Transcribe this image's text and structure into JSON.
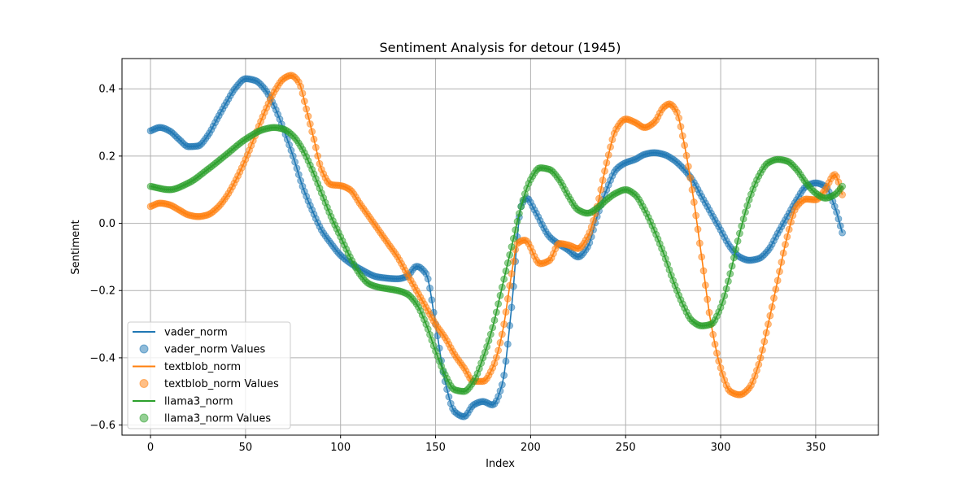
{
  "chart_data": {
    "type": "line",
    "title": "Sentiment Analysis for detour (1945)",
    "xlabel": "Index",
    "ylabel": "Sentiment",
    "xlim": [
      -15,
      383
    ],
    "ylim": [
      -0.63,
      0.49
    ],
    "xticks": [
      0,
      50,
      100,
      150,
      200,
      250,
      300,
      350
    ],
    "yticks": [
      -0.6,
      -0.4,
      -0.2,
      0.0,
      0.2,
      0.4
    ],
    "xtick_labels": [
      "0",
      "50",
      "100",
      "150",
      "200",
      "250",
      "300",
      "350"
    ],
    "ytick_labels": [
      "−0.6",
      "−0.4",
      "−0.2",
      "0.0",
      "0.2",
      "0.4"
    ],
    "grid": true,
    "legend_position": "lower-left",
    "x_range": [
      0,
      364
    ],
    "series": [
      {
        "name": "vader_norm",
        "scatter_name": "vader_norm Values",
        "color": "#1f77b4",
        "keypoints": [
          [
            0,
            0.275
          ],
          [
            5,
            0.285
          ],
          [
            10,
            0.275
          ],
          [
            15,
            0.25
          ],
          [
            20,
            0.228
          ],
          [
            25,
            0.23
          ],
          [
            30,
            0.26
          ],
          [
            35,
            0.31
          ],
          [
            40,
            0.36
          ],
          [
            45,
            0.405
          ],
          [
            50,
            0.43
          ],
          [
            55,
            0.425
          ],
          [
            60,
            0.4
          ],
          [
            65,
            0.35
          ],
          [
            70,
            0.28
          ],
          [
            75,
            0.2
          ],
          [
            80,
            0.11
          ],
          [
            85,
            0.04
          ],
          [
            90,
            -0.02
          ],
          [
            95,
            -0.06
          ],
          [
            100,
            -0.095
          ],
          [
            110,
            -0.135
          ],
          [
            120,
            -0.16
          ],
          [
            130,
            -0.165
          ],
          [
            135,
            -0.158
          ],
          [
            140,
            -0.128
          ],
          [
            145,
            -0.15
          ],
          [
            150,
            -0.3
          ],
          [
            155,
            -0.47
          ],
          [
            160,
            -0.56
          ],
          [
            165,
            -0.575
          ],
          [
            170,
            -0.54
          ],
          [
            175,
            -0.53
          ],
          [
            180,
            -0.54
          ],
          [
            185,
            -0.48
          ],
          [
            190,
            -0.25
          ],
          [
            195,
            0.05
          ],
          [
            198,
            0.075
          ],
          [
            202,
            0.04
          ],
          [
            210,
            -0.04
          ],
          [
            220,
            -0.08
          ],
          [
            225,
            -0.1
          ],
          [
            230,
            -0.07
          ],
          [
            235,
            0.02
          ],
          [
            240,
            0.1
          ],
          [
            245,
            0.16
          ],
          [
            250,
            0.18
          ],
          [
            255,
            0.19
          ],
          [
            260,
            0.205
          ],
          [
            265,
            0.21
          ],
          [
            270,
            0.205
          ],
          [
            275,
            0.19
          ],
          [
            280,
            0.165
          ],
          [
            285,
            0.13
          ],
          [
            290,
            0.08
          ],
          [
            295,
            0.03
          ],
          [
            300,
            -0.02
          ],
          [
            305,
            -0.07
          ],
          [
            310,
            -0.1
          ],
          [
            315,
            -0.11
          ],
          [
            320,
            -0.105
          ],
          [
            325,
            -0.08
          ],
          [
            330,
            -0.03
          ],
          [
            335,
            0.02
          ],
          [
            340,
            0.07
          ],
          [
            345,
            0.11
          ],
          [
            350,
            0.12
          ],
          [
            355,
            0.11
          ],
          [
            360,
            0.05
          ],
          [
            364,
            -0.028
          ]
        ]
      },
      {
        "name": "textblob_norm",
        "scatter_name": "textblob_norm Values",
        "color": "#ff7f0e",
        "keypoints": [
          [
            0,
            0.05
          ],
          [
            5,
            0.06
          ],
          [
            10,
            0.055
          ],
          [
            15,
            0.04
          ],
          [
            20,
            0.025
          ],
          [
            25,
            0.02
          ],
          [
            30,
            0.025
          ],
          [
            35,
            0.045
          ],
          [
            40,
            0.08
          ],
          [
            45,
            0.13
          ],
          [
            50,
            0.19
          ],
          [
            55,
            0.26
          ],
          [
            60,
            0.33
          ],
          [
            65,
            0.39
          ],
          [
            70,
            0.43
          ],
          [
            74,
            0.44
          ],
          [
            78,
            0.42
          ],
          [
            82,
            0.34
          ],
          [
            86,
            0.25
          ],
          [
            90,
            0.16
          ],
          [
            95,
            0.115
          ],
          [
            100,
            0.112
          ],
          [
            105,
            0.1
          ],
          [
            110,
            0.06
          ],
          [
            115,
            0.02
          ],
          [
            120,
            -0.02
          ],
          [
            125,
            -0.06
          ],
          [
            130,
            -0.1
          ],
          [
            135,
            -0.15
          ],
          [
            140,
            -0.2
          ],
          [
            145,
            -0.25
          ],
          [
            150,
            -0.3
          ],
          [
            155,
            -0.34
          ],
          [
            160,
            -0.39
          ],
          [
            165,
            -0.43
          ],
          [
            170,
            -0.47
          ],
          [
            175,
            -0.47
          ],
          [
            180,
            -0.43
          ],
          [
            185,
            -0.33
          ],
          [
            190,
            -0.15
          ],
          [
            193,
            -0.06
          ],
          [
            197,
            -0.05
          ],
          [
            205,
            -0.12
          ],
          [
            210,
            -0.11
          ],
          [
            215,
            -0.06
          ],
          [
            220,
            -0.065
          ],
          [
            225,
            -0.075
          ],
          [
            230,
            -0.04
          ],
          [
            235,
            0.05
          ],
          [
            240,
            0.18
          ],
          [
            245,
            0.28
          ],
          [
            250,
            0.31
          ],
          [
            255,
            0.3
          ],
          [
            260,
            0.285
          ],
          [
            265,
            0.3
          ],
          [
            270,
            0.345
          ],
          [
            273,
            0.355
          ],
          [
            277,
            0.33
          ],
          [
            280,
            0.26
          ],
          [
            285,
            0.1
          ],
          [
            290,
            -0.1
          ],
          [
            295,
            -0.3
          ],
          [
            300,
            -0.43
          ],
          [
            305,
            -0.5
          ],
          [
            310,
            -0.51
          ],
          [
            315,
            -0.49
          ],
          [
            320,
            -0.42
          ],
          [
            325,
            -0.3
          ],
          [
            330,
            -0.17
          ],
          [
            335,
            -0.04
          ],
          [
            340,
            0.05
          ],
          [
            345,
            0.072
          ],
          [
            350,
            0.07
          ],
          [
            355,
            0.1
          ],
          [
            360,
            0.145
          ],
          [
            364,
            0.085
          ]
        ]
      },
      {
        "name": "llama3_norm",
        "scatter_name": "llama3_norm Values",
        "color": "#2ca02c",
        "keypoints": [
          [
            0,
            0.11
          ],
          [
            10,
            0.1
          ],
          [
            20,
            0.12
          ],
          [
            30,
            0.16
          ],
          [
            40,
            0.205
          ],
          [
            50,
            0.25
          ],
          [
            60,
            0.28
          ],
          [
            65,
            0.285
          ],
          [
            70,
            0.28
          ],
          [
            75,
            0.26
          ],
          [
            80,
            0.22
          ],
          [
            85,
            0.16
          ],
          [
            90,
            0.09
          ],
          [
            95,
            0.02
          ],
          [
            100,
            -0.04
          ],
          [
            105,
            -0.1
          ],
          [
            110,
            -0.15
          ],
          [
            115,
            -0.18
          ],
          [
            120,
            -0.19
          ],
          [
            125,
            -0.195
          ],
          [
            130,
            -0.2
          ],
          [
            135,
            -0.21
          ],
          [
            140,
            -0.24
          ],
          [
            145,
            -0.3
          ],
          [
            150,
            -0.38
          ],
          [
            155,
            -0.45
          ],
          [
            160,
            -0.495
          ],
          [
            165,
            -0.5
          ],
          [
            170,
            -0.47
          ],
          [
            175,
            -0.4
          ],
          [
            180,
            -0.31
          ],
          [
            185,
            -0.19
          ],
          [
            190,
            -0.07
          ],
          [
            195,
            0.05
          ],
          [
            200,
            0.13
          ],
          [
            205,
            0.165
          ],
          [
            210,
            0.16
          ],
          [
            215,
            0.13
          ],
          [
            220,
            0.08
          ],
          [
            225,
            0.04
          ],
          [
            230,
            0.03
          ],
          [
            235,
            0.045
          ],
          [
            240,
            0.07
          ],
          [
            245,
            0.09
          ],
          [
            250,
            0.1
          ],
          [
            255,
            0.085
          ],
          [
            260,
            0.04
          ],
          [
            265,
            -0.02
          ],
          [
            270,
            -0.09
          ],
          [
            275,
            -0.17
          ],
          [
            280,
            -0.24
          ],
          [
            285,
            -0.29
          ],
          [
            290,
            -0.305
          ],
          [
            295,
            -0.3
          ],
          [
            300,
            -0.25
          ],
          [
            305,
            -0.15
          ],
          [
            310,
            -0.03
          ],
          [
            315,
            0.07
          ],
          [
            320,
            0.14
          ],
          [
            325,
            0.18
          ],
          [
            330,
            0.19
          ],
          [
            335,
            0.185
          ],
          [
            340,
            0.16
          ],
          [
            345,
            0.12
          ],
          [
            350,
            0.09
          ],
          [
            355,
            0.075
          ],
          [
            360,
            0.085
          ],
          [
            364,
            0.11
          ]
        ]
      }
    ]
  }
}
